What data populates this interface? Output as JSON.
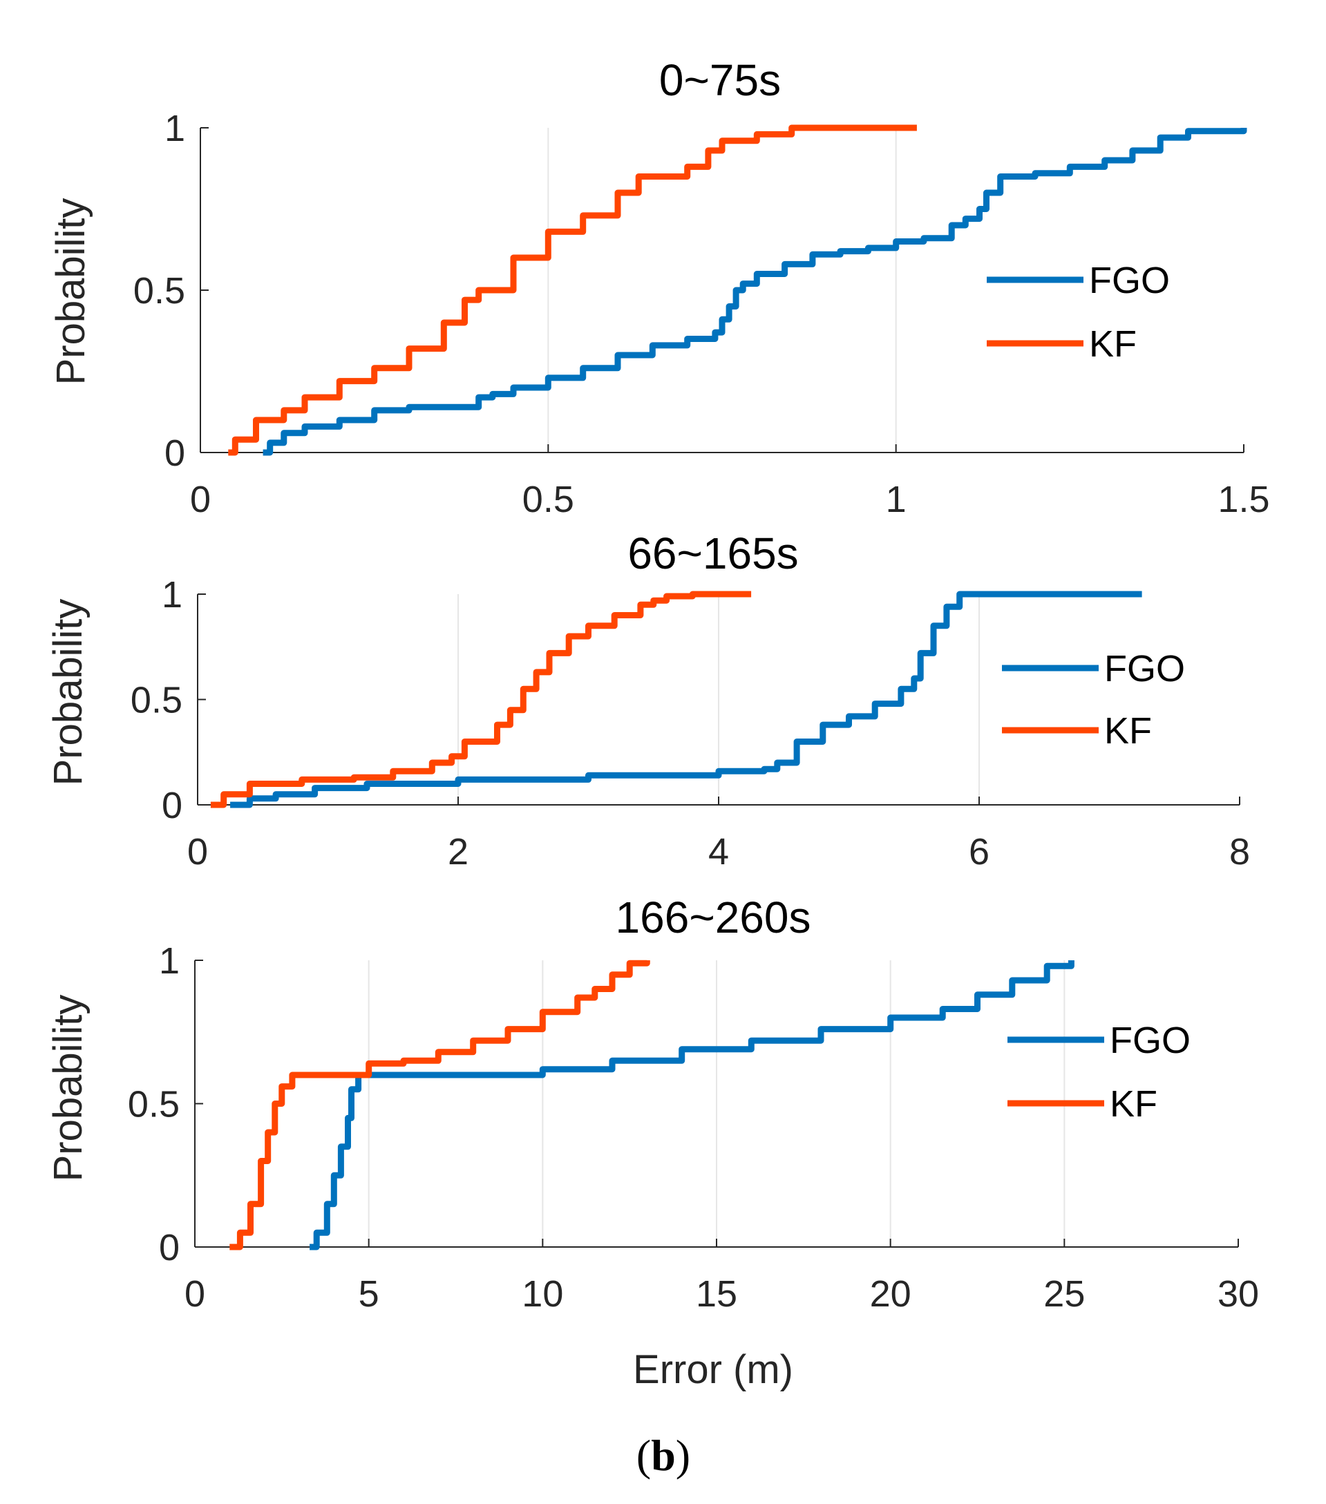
{
  "colors": {
    "FGO": "#0072BD",
    "KF": "#FF4500"
  },
  "caption": {
    "open": "(",
    "letter": "b",
    "close": ")"
  },
  "chart_data": [
    {
      "type": "line",
      "title": "0~75s",
      "xlabel": "",
      "ylabel": "Probability",
      "xlim": [
        0,
        1.5
      ],
      "ylim": [
        0,
        1
      ],
      "xticks": [
        "0",
        "0.5",
        "1",
        "1.5"
      ],
      "yticks": [
        "0",
        "0.5",
        "1"
      ],
      "grid": "x",
      "legend": "right",
      "series": [
        {
          "name": "FGO",
          "color": "#0072BD",
          "x": [
            0.09,
            0.1,
            0.12,
            0.15,
            0.2,
            0.25,
            0.3,
            0.37,
            0.4,
            0.42,
            0.45,
            0.5,
            0.55,
            0.6,
            0.65,
            0.7,
            0.74,
            0.75,
            0.76,
            0.77,
            0.78,
            0.8,
            0.84,
            0.88,
            0.92,
            0.96,
            1.0,
            1.04,
            1.08,
            1.1,
            1.12,
            1.13,
            1.15,
            1.2,
            1.25,
            1.3,
            1.34,
            1.38,
            1.42,
            1.5
          ],
          "y": [
            0,
            0.03,
            0.06,
            0.08,
            0.1,
            0.13,
            0.14,
            0.14,
            0.17,
            0.18,
            0.2,
            0.23,
            0.26,
            0.3,
            0.33,
            0.35,
            0.37,
            0.41,
            0.45,
            0.5,
            0.52,
            0.55,
            0.58,
            0.61,
            0.62,
            0.63,
            0.65,
            0.66,
            0.7,
            0.72,
            0.75,
            0.8,
            0.85,
            0.86,
            0.88,
            0.9,
            0.93,
            0.97,
            0.99,
            1.0
          ]
        },
        {
          "name": "KF",
          "color": "#FF4500",
          "x": [
            0.04,
            0.05,
            0.08,
            0.12,
            0.15,
            0.2,
            0.25,
            0.3,
            0.35,
            0.38,
            0.4,
            0.45,
            0.5,
            0.55,
            0.6,
            0.63,
            0.7,
            0.73,
            0.75,
            0.8,
            0.85,
            0.9,
            1.03
          ],
          "y": [
            0,
            0.04,
            0.1,
            0.13,
            0.17,
            0.22,
            0.26,
            0.32,
            0.4,
            0.47,
            0.5,
            0.6,
            0.68,
            0.73,
            0.8,
            0.85,
            0.88,
            0.93,
            0.96,
            0.98,
            1.0,
            1.0,
            1.0
          ]
        }
      ]
    },
    {
      "type": "line",
      "title": "66~165s",
      "xlabel": "",
      "ylabel": "Probability",
      "xlim": [
        0,
        8
      ],
      "ylim": [
        0,
        1
      ],
      "xticks": [
        "0",
        "2",
        "4",
        "6",
        "8"
      ],
      "yticks": [
        "0",
        "0.5",
        "1"
      ],
      "grid": "x",
      "legend": "right",
      "series": [
        {
          "name": "FGO",
          "color": "#0072BD",
          "x": [
            0.25,
            0.4,
            0.6,
            0.9,
            1.3,
            2.0,
            3.0,
            4.0,
            4.35,
            4.45,
            4.6,
            4.8,
            5.0,
            5.2,
            5.4,
            5.5,
            5.55,
            5.65,
            5.75,
            5.85,
            6.0,
            6.5,
            7.0,
            7.25
          ],
          "y": [
            0,
            0.03,
            0.05,
            0.08,
            0.1,
            0.12,
            0.14,
            0.16,
            0.17,
            0.2,
            0.3,
            0.38,
            0.42,
            0.48,
            0.55,
            0.6,
            0.72,
            0.85,
            0.94,
            1.0,
            1.0,
            1.0,
            1.0,
            1.0
          ]
        },
        {
          "name": "KF",
          "color": "#FF4500",
          "x": [
            0.1,
            0.2,
            0.4,
            0.8,
            1.2,
            1.5,
            1.8,
            1.95,
            2.05,
            2.3,
            2.4,
            2.5,
            2.6,
            2.7,
            2.85,
            3.0,
            3.2,
            3.4,
            3.5,
            3.6,
            3.8,
            4.0,
            4.25
          ],
          "y": [
            0,
            0.05,
            0.1,
            0.12,
            0.13,
            0.16,
            0.2,
            0.23,
            0.3,
            0.38,
            0.45,
            0.55,
            0.63,
            0.72,
            0.8,
            0.85,
            0.9,
            0.95,
            0.97,
            0.99,
            1.0,
            1.0,
            1.0
          ]
        }
      ]
    },
    {
      "type": "line",
      "title": "166~260s",
      "xlabel": "Error (m)",
      "ylabel": "Probability",
      "xlim": [
        0,
        30
      ],
      "ylim": [
        0,
        1
      ],
      "xticks": [
        "0",
        "5",
        "10",
        "15",
        "20",
        "25",
        "30"
      ],
      "yticks": [
        "0",
        "0.5",
        "1"
      ],
      "grid": "x",
      "legend": "right",
      "series": [
        {
          "name": "FGO",
          "color": "#0072BD",
          "x": [
            3.3,
            3.5,
            3.8,
            4.0,
            4.2,
            4.4,
            4.5,
            4.7,
            5.0,
            6.0,
            8.0,
            10.0,
            12.0,
            14.0,
            16.0,
            18.0,
            20.0,
            21.5,
            22.5,
            23.5,
            24.5,
            25.2
          ],
          "y": [
            0,
            0.05,
            0.15,
            0.25,
            0.35,
            0.45,
            0.55,
            0.6,
            0.6,
            0.6,
            0.6,
            0.62,
            0.65,
            0.69,
            0.72,
            0.76,
            0.8,
            0.83,
            0.88,
            0.93,
            0.98,
            1.0
          ]
        },
        {
          "name": "KF",
          "color": "#FF4500",
          "x": [
            1.0,
            1.3,
            1.6,
            1.9,
            2.1,
            2.3,
            2.5,
            2.8,
            3.5,
            4.5,
            5.0,
            6.0,
            7.0,
            8.0,
            9.0,
            10.0,
            11.0,
            11.5,
            12.0,
            12.5,
            13.0
          ],
          "y": [
            0,
            0.05,
            0.15,
            0.3,
            0.4,
            0.5,
            0.56,
            0.6,
            0.6,
            0.6,
            0.64,
            0.65,
            0.68,
            0.72,
            0.76,
            0.82,
            0.87,
            0.9,
            0.95,
            0.99,
            1.0
          ]
        }
      ]
    }
  ]
}
